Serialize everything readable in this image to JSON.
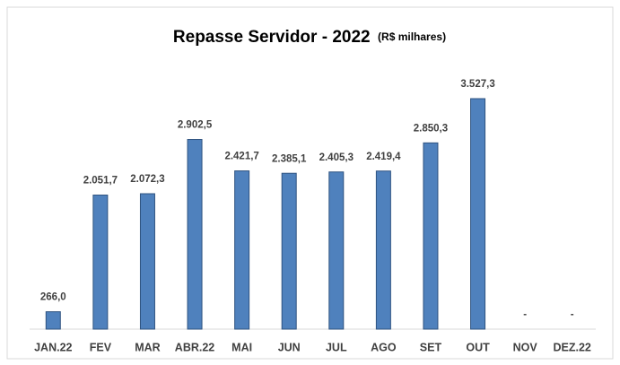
{
  "chart_data": {
    "type": "bar",
    "title": "Repasse Servidor - 2022",
    "subtitle": "(R$ milhares)",
    "categories": [
      "JAN.22",
      "FEV",
      "MAR",
      "ABR.22",
      "MAI",
      "JUN",
      "JUL",
      "AGO",
      "SET",
      "OUT",
      "NOV",
      "DEZ.22"
    ],
    "values": [
      266.0,
      2051.7,
      2072.3,
      2902.5,
      2421.7,
      2385.1,
      2405.3,
      2419.4,
      2850.3,
      3527.3,
      null,
      null
    ],
    "value_labels": [
      "266,0",
      "2.051,7",
      "2.072,3",
      "2.902,5",
      "2.421,7",
      "2.385,1",
      "2.405,3",
      "2.419,4",
      "2.850,3",
      "3.527,3",
      "-",
      "-"
    ],
    "color": "#4f81bd"
  }
}
